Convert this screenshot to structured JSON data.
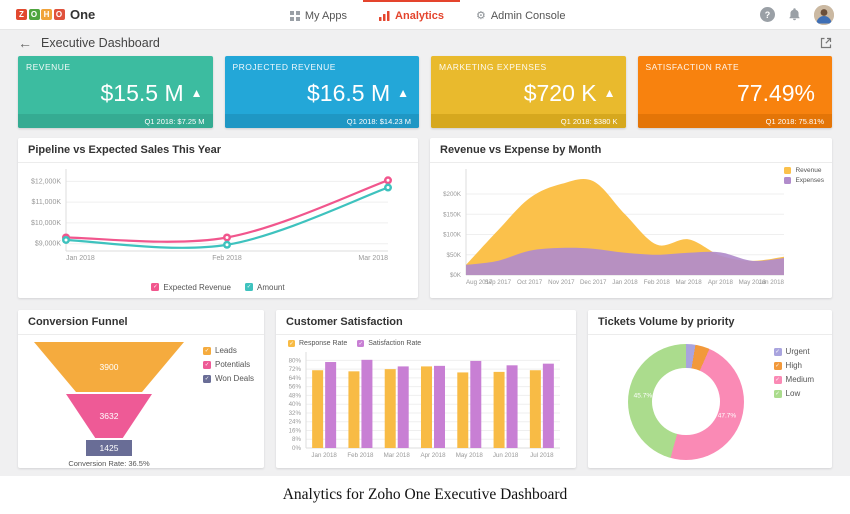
{
  "icons": {
    "back_arrow": "←",
    "help": "?",
    "gear": "⚙",
    "check": "✓"
  },
  "topbar": {
    "brand_letters": [
      {
        "ch": "Z",
        "color": "#e2492f"
      },
      {
        "ch": "O",
        "color": "#4fa53f"
      },
      {
        "ch": "H",
        "color": "#f0a33a"
      },
      {
        "ch": "O",
        "color": "#e0523c"
      }
    ],
    "brand_name": "One",
    "nav": [
      {
        "label": "My Apps",
        "icon": "grid",
        "active": false
      },
      {
        "label": "Analytics",
        "icon": "chart",
        "active": true
      },
      {
        "label": "Admin Console",
        "icon": "gear",
        "active": false
      }
    ]
  },
  "header": {
    "title": "Executive Dashboard"
  },
  "kpis": [
    {
      "label": "REVENUE",
      "value": "$15.5 M",
      "trend_icon": "▲",
      "footnote": "Q1 2018: $7.25 M",
      "color": "#3cbca0",
      "footer_color": "#35ab92"
    },
    {
      "label": "PROJECTED REVENUE",
      "value": "$16.5 M",
      "trend_icon": "▲",
      "footnote": "Q1 2018: $14.23 M",
      "color": "#23a7d8",
      "footer_color": "#1f97c4"
    },
    {
      "label": "MARKETING EXPENSES",
      "value": "$720 K",
      "trend_icon": "▲",
      "footnote": "Q1 2018: $380 K",
      "color": "#e9ba2d",
      "footer_color": "#d6a81e"
    },
    {
      "label": "SATISFACTION RATE",
      "value": "77.49%",
      "trend_icon": "",
      "footnote": "Q1 2018: 75.81%",
      "color": "#f8820e",
      "footer_color": "#e47507"
    }
  ],
  "chart_data": [
    {
      "id": "pipeline",
      "type": "line",
      "title": "Pipeline vs Expected Sales This Year",
      "categories": [
        "Jan 2018",
        "Feb 2018",
        "Mar 2018"
      ],
      "series": [
        {
          "name": "Expected Revenue",
          "color": "#f1568d",
          "values": [
            9300,
            9300,
            12050
          ]
        },
        {
          "name": "Amount",
          "color": "#3ec2be",
          "values": [
            9180,
            8950,
            11700
          ]
        }
      ],
      "yticks": [
        {
          "v": 9000,
          "label": "$9,000K"
        },
        {
          "v": 10000,
          "label": "$10,000K"
        },
        {
          "v": 11000,
          "label": "$11,000K"
        },
        {
          "v": 12000,
          "label": "$12,000K"
        }
      ],
      "ylim": [
        8650,
        12400
      ],
      "grid": true,
      "legend_position": "bottom"
    },
    {
      "id": "revenue-expense",
      "type": "area",
      "title": "Revenue vs Expense by Month",
      "categories": [
        "Aug 2017",
        "Sep 2017",
        "Oct 2017",
        "Nov 2017",
        "Dec 2017",
        "Jan 2018",
        "Feb 2018",
        "Mar 2018",
        "Apr 2018",
        "May 2018",
        "Jun 2018"
      ],
      "series": [
        {
          "name": "Revenue",
          "color": "#fbc14b",
          "values": [
            25,
            110,
            190,
            225,
            232,
            150,
            75,
            88,
            48,
            35,
            45
          ]
        },
        {
          "name": "Expenses",
          "color": "#b18ccb",
          "values": [
            25,
            35,
            60,
            67,
            65,
            55,
            50,
            55,
            56,
            35,
            42
          ]
        }
      ],
      "yticks": [
        {
          "v": 0,
          "label": "$0K"
        },
        {
          "v": 50,
          "label": "$50K"
        },
        {
          "v": 100,
          "label": "$100K"
        },
        {
          "v": 150,
          "label": "$150K"
        },
        {
          "v": 200,
          "label": "$200K"
        }
      ],
      "ylim": [
        0,
        252
      ],
      "grid": true,
      "legend_position": "top-right"
    },
    {
      "id": "funnel",
      "type": "funnel",
      "title": "Conversion Funnel",
      "stages": [
        {
          "name": "Leads",
          "value": "3900",
          "color": "#f5ab3e"
        },
        {
          "name": "Potentials",
          "value": "3632",
          "color": "#ee5a96"
        },
        {
          "name": "Won Deals",
          "value": "1425",
          "color": "#696d96"
        }
      ],
      "note": "Conversion Rate: 36.5%"
    },
    {
      "id": "satisfaction",
      "type": "bar",
      "title": "Customer Satisfaction",
      "categories": [
        "Jan 2018",
        "Feb 2018",
        "Mar 2018",
        "Apr 2018",
        "May 2018",
        "Jun 2018",
        "Jul 2018"
      ],
      "series": [
        {
          "name": "Response Rate",
          "color": "#f8bb45",
          "values": [
            71,
            70,
            72,
            74.5,
            69,
            69.5,
            71
          ]
        },
        {
          "name": "Satisfaction Rate",
          "color": "#c87fd4",
          "values": [
            78.5,
            80.5,
            74.5,
            75,
            79.5,
            75.5,
            77
          ]
        }
      ],
      "yticks": [
        {
          "v": 0,
          "label": "0%"
        },
        {
          "v": 8,
          "label": "8%"
        },
        {
          "v": 16,
          "label": "16%"
        },
        {
          "v": 24,
          "label": "24%"
        },
        {
          "v": 32,
          "label": "32%"
        },
        {
          "v": 40,
          "label": "40%"
        },
        {
          "v": 48,
          "label": "48%"
        },
        {
          "v": 56,
          "label": "56%"
        },
        {
          "v": 64,
          "label": "64%"
        },
        {
          "v": 72,
          "label": "72%"
        },
        {
          "v": 80,
          "label": "80%"
        }
      ],
      "ylim": [
        0,
        84
      ],
      "grid": true,
      "legend_position": "top-left"
    },
    {
      "id": "tickets",
      "type": "donut",
      "title": "Tickets Volume by priority",
      "slices": [
        {
          "name": "Urgent",
          "pct": 2.6,
          "color": "#a9a4de",
          "label": ""
        },
        {
          "name": "High",
          "pct": 4.0,
          "color": "#f2993b",
          "label": ""
        },
        {
          "name": "Medium",
          "pct": 47.7,
          "color": "#fa8ab5",
          "label": "47.7%"
        },
        {
          "name": "Low",
          "pct": 45.7,
          "color": "#abdc8d",
          "label": "45.7%"
        }
      ],
      "legend_position": "right"
    }
  ],
  "caption": "Analytics for Zoho One Executive Dashboard"
}
